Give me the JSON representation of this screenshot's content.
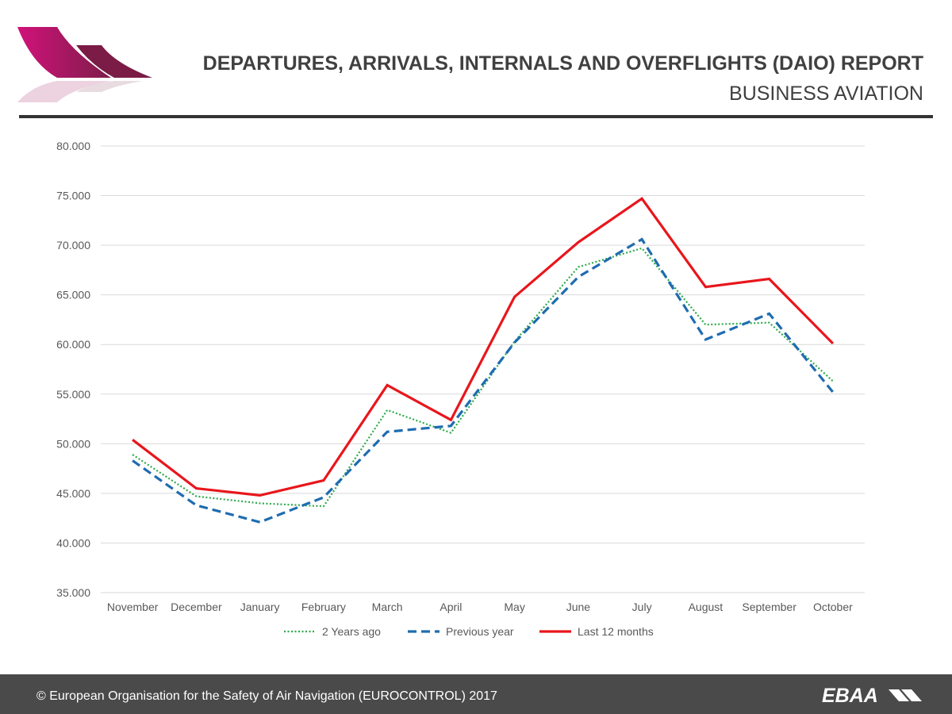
{
  "header": {
    "title": "DEPARTURES, ARRIVALS, INTERNALS AND OVERFLIGHTS (DAIO) REPORT",
    "subtitle": "BUSINESS AVIATION"
  },
  "footer": {
    "copyright": "© European Organisation for the Safety of Air Navigation (EUROCONTROL) 2017",
    "logo_text": "EBAA"
  },
  "colors": {
    "logo_magenta": "#c8116f",
    "logo_dark": "#7a1c45",
    "series_2y": "#2eaa4a",
    "series_prev": "#1f6cb0",
    "series_12m": "#e8161c",
    "grid": "#d9d9d9",
    "footer_bg": "#4a4a4a"
  },
  "chart_data": {
    "type": "line",
    "categories": [
      "November",
      "December",
      "January",
      "February",
      "March",
      "April",
      "May",
      "June",
      "July",
      "August",
      "September",
      "October"
    ],
    "ylim": [
      35000,
      80000
    ],
    "yticks": [
      "35.000",
      "40.000",
      "45.000",
      "50.000",
      "55.000",
      "60.000",
      "65.000",
      "70.000",
      "75.000",
      "80.000"
    ],
    "grid": true,
    "legend_position": "bottom",
    "series": [
      {
        "name": "2 Years ago",
        "style": "dotted",
        "color": "#2eaa4a",
        "values": [
          48900,
          44700,
          44000,
          43700,
          53400,
          51100,
          60300,
          67800,
          69700,
          62000,
          62200,
          56300
        ]
      },
      {
        "name": "Previous year",
        "style": "dashed",
        "color": "#1f6cb0",
        "values": [
          48300,
          43800,
          42100,
          44600,
          51200,
          51800,
          60200,
          66800,
          70600,
          60500,
          63100,
          55200
        ]
      },
      {
        "name": "Last 12 months",
        "style": "solid",
        "color": "#e8161c",
        "values": [
          50400,
          45500,
          44800,
          46300,
          55900,
          52400,
          64800,
          70300,
          74700,
          65800,
          66600,
          60100
        ]
      }
    ]
  }
}
